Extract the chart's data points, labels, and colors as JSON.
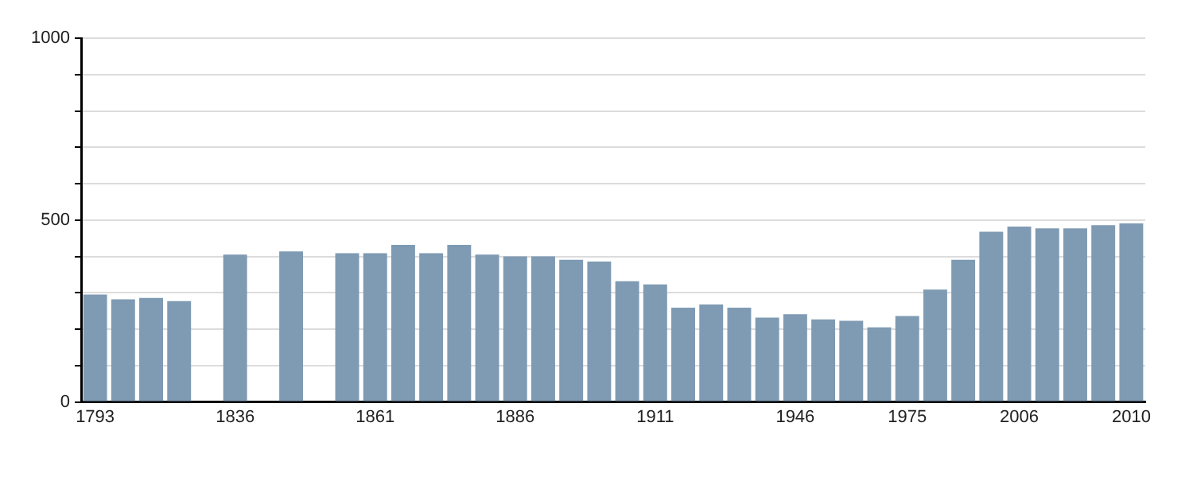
{
  "chart_data": {
    "type": "bar",
    "categories": [
      "1793",
      null,
      null,
      null,
      null,
      "1836",
      null,
      null,
      null,
      null,
      "1861",
      null,
      null,
      null,
      null,
      "1886",
      null,
      null,
      null,
      null,
      "1911",
      null,
      null,
      null,
      null,
      "1946",
      null,
      null,
      null,
      "1975",
      null,
      null,
      null,
      "2006",
      null,
      null,
      null,
      "2010"
    ],
    "values": [
      295,
      282,
      286,
      277,
      null,
      405,
      null,
      414,
      null,
      409,
      409,
      432,
      409,
      432,
      405,
      400,
      400,
      391,
      386,
      332,
      323,
      259,
      268,
      259,
      232,
      241,
      227,
      223,
      205,
      236,
      309,
      391,
      468,
      482,
      477,
      477,
      486,
      491
    ],
    "color": "#7f9ab3",
    "ylim": [
      0,
      1000
    ],
    "yticks": [
      0,
      {
        "value": 100,
        "label": null
      },
      {
        "value": 200,
        "label": null
      },
      {
        "value": 300,
        "label": null
      },
      {
        "value": 400,
        "label": null
      },
      500,
      {
        "value": 600,
        "label": null
      },
      {
        "value": 700,
        "label": null
      },
      {
        "value": 800,
        "label": null
      },
      {
        "value": 900,
        "label": null
      },
      1000
    ],
    "grid": "y",
    "legend": false
  }
}
